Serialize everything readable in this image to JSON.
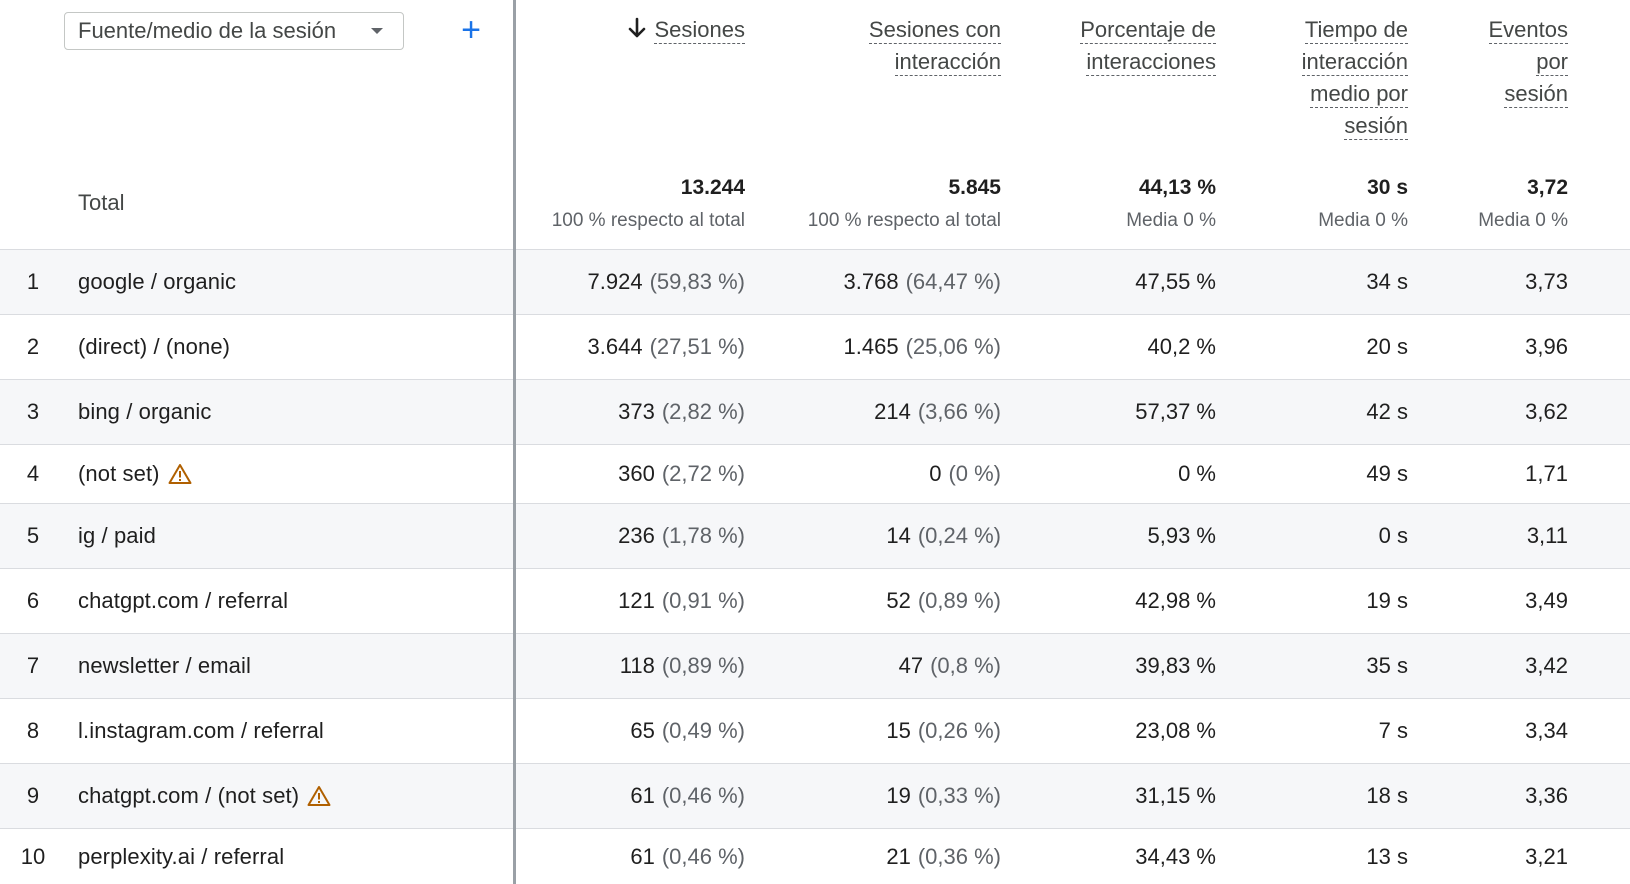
{
  "header": {
    "dimension_select": "Fuente/medio de la sesión",
    "add_dimension_icon": "plus-icon",
    "columns": [
      {
        "key": "sessions",
        "lines": [
          "Sesiones"
        ],
        "sorted": true,
        "sort_icon": "arrow-down-icon"
      },
      {
        "key": "engaged",
        "lines": [
          "Sesiones con",
          "interacción"
        ]
      },
      {
        "key": "engagement_rate",
        "lines": [
          "Porcentaje de",
          "interacciones"
        ]
      },
      {
        "key": "avg_time",
        "lines": [
          "Tiempo de",
          "interacción",
          "medio por",
          "sesión"
        ]
      },
      {
        "key": "events_per_session",
        "lines": [
          "Eventos",
          "por",
          "sesión"
        ]
      }
    ]
  },
  "totals": {
    "label": "Total",
    "sessions": {
      "value": "13.244",
      "sub": "100 % respecto al total"
    },
    "engaged": {
      "value": "5.845",
      "sub": "100 % respecto al total"
    },
    "engagement_rate": {
      "value": "44,13 %",
      "sub": "Media 0 %"
    },
    "avg_time": {
      "value": "30 s",
      "sub": "Media 0 %"
    },
    "events_per_session": {
      "value": "3,72",
      "sub": "Media 0 %"
    }
  },
  "colors": {
    "accent": "#1a73e8",
    "warning": "#b06000",
    "shaded_row": "#f6f7f9"
  },
  "rows": [
    {
      "index": "1",
      "dimension": "google / organic",
      "warning": false,
      "sessions": "7.924",
      "sessions_pct": "(59,83 %)",
      "engaged": "3.768",
      "engaged_pct": "(64,47 %)",
      "engagement_rate": "47,55 %",
      "avg_time": "34 s",
      "events_per_session": "3,73"
    },
    {
      "index": "2",
      "dimension": "(direct) / (none)",
      "warning": false,
      "sessions": "3.644",
      "sessions_pct": "(27,51 %)",
      "engaged": "1.465",
      "engaged_pct": "(25,06 %)",
      "engagement_rate": "40,2 %",
      "avg_time": "20 s",
      "events_per_session": "3,96"
    },
    {
      "index": "3",
      "dimension": "bing / organic",
      "warning": false,
      "sessions": "373",
      "sessions_pct": "(2,82 %)",
      "engaged": "214",
      "engaged_pct": "(3,66 %)",
      "engagement_rate": "57,37 %",
      "avg_time": "42 s",
      "events_per_session": "3,62"
    },
    {
      "index": "4",
      "dimension": "(not set)",
      "warning": true,
      "sessions": "360",
      "sessions_pct": "(2,72 %)",
      "engaged": "0",
      "engaged_pct": "(0 %)",
      "engagement_rate": "0 %",
      "avg_time": "49 s",
      "events_per_session": "1,71"
    },
    {
      "index": "5",
      "dimension": "ig / paid",
      "warning": false,
      "sessions": "236",
      "sessions_pct": "(1,78 %)",
      "engaged": "14",
      "engaged_pct": "(0,24 %)",
      "engagement_rate": "5,93 %",
      "avg_time": "0 s",
      "events_per_session": "3,11"
    },
    {
      "index": "6",
      "dimension": "chatgpt.com / referral",
      "warning": false,
      "sessions": "121",
      "sessions_pct": "(0,91 %)",
      "engaged": "52",
      "engaged_pct": "(0,89 %)",
      "engagement_rate": "42,98 %",
      "avg_time": "19 s",
      "events_per_session": "3,49"
    },
    {
      "index": "7",
      "dimension": "newsletter / email",
      "warning": false,
      "sessions": "118",
      "sessions_pct": "(0,89 %)",
      "engaged": "47",
      "engaged_pct": "(0,8 %)",
      "engagement_rate": "39,83 %",
      "avg_time": "35 s",
      "events_per_session": "3,42"
    },
    {
      "index": "8",
      "dimension": "l.instagram.com / referral",
      "warning": false,
      "sessions": "65",
      "sessions_pct": "(0,49 %)",
      "engaged": "15",
      "engaged_pct": "(0,26 %)",
      "engagement_rate": "23,08 %",
      "avg_time": "7 s",
      "events_per_session": "3,34"
    },
    {
      "index": "9",
      "dimension": "chatgpt.com / (not set)",
      "warning": true,
      "sessions": "61",
      "sessions_pct": "(0,46 %)",
      "engaged": "19",
      "engaged_pct": "(0,33 %)",
      "engagement_rate": "31,15 %",
      "avg_time": "18 s",
      "events_per_session": "3,36"
    },
    {
      "index": "10",
      "dimension": "perplexity.ai / referral",
      "warning": false,
      "sessions": "61",
      "sessions_pct": "(0,46 %)",
      "engaged": "21",
      "engaged_pct": "(0,36 %)",
      "engagement_rate": "34,43 %",
      "avg_time": "13 s",
      "events_per_session": "3,21"
    }
  ]
}
